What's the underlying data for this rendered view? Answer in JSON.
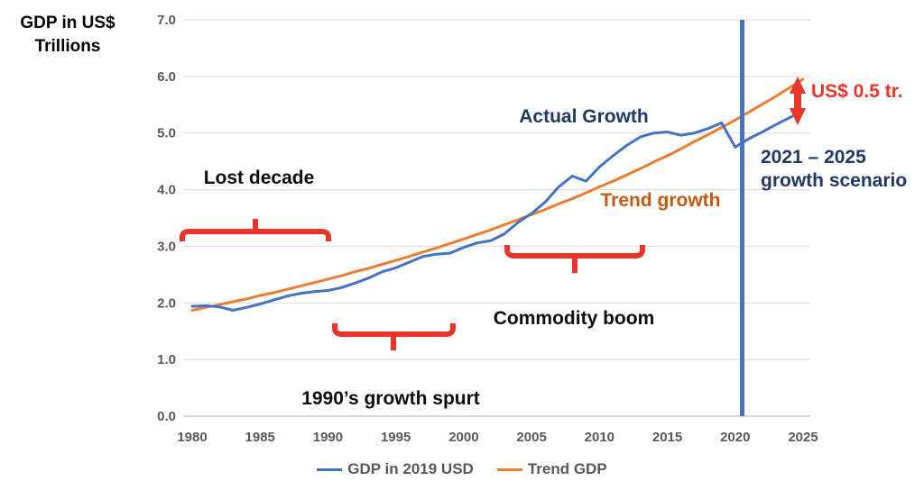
{
  "axis_title": {
    "line1": "GDP in US$",
    "line2": "Trillions"
  },
  "annotations": {
    "lost_decade": "Lost decade",
    "growth_spurt": "1990’s growth spurt",
    "commodity_boom": "Commodity boom",
    "actual_growth": "Actual Growth",
    "trend_growth": "Trend growth",
    "gap_label": "US$ 0.5 tr.",
    "scenario_line1": "2021 – 2025",
    "scenario_line2": "growth scenario"
  },
  "legend": {
    "items": [
      {
        "label": "GDP in 2019 USD",
        "color": "#4472c4"
      },
      {
        "label": "Trend GDP",
        "color": "#ed7d31"
      }
    ]
  },
  "colors": {
    "actual_line": "#4472c4",
    "trend_line": "#ed7d31",
    "annotation_red": "#e8352a",
    "annotation_navy": "#1f3864",
    "annotation_orange": "#c45911",
    "axis_gray": "#595959",
    "gridline": "#d9d9d9",
    "divider_blue": "#4472c4"
  },
  "chart_data": {
    "type": "line",
    "title": "GDP in US$ Trillions",
    "xlabel": "",
    "ylabel": "GDP in US$ Trillions",
    "ylim": [
      0.0,
      7.0
    ],
    "xlim": [
      1980,
      2025
    ],
    "grid": "horizontal",
    "legend_position": "bottom-center",
    "yticks": [
      0.0,
      1.0,
      2.0,
      3.0,
      4.0,
      5.0,
      6.0,
      7.0
    ],
    "xticks": [
      1980,
      1985,
      1990,
      1995,
      2000,
      2005,
      2010,
      2015,
      2020,
      2025
    ],
    "vertical_marker_year": 2020.5,
    "gap_arrow": {
      "year": 2024.5,
      "from_value": 5.85,
      "to_value": 5.32,
      "label": "US$ 0.5 tr."
    },
    "x": [
      1980,
      1981,
      1982,
      1983,
      1984,
      1985,
      1986,
      1987,
      1988,
      1989,
      1990,
      1991,
      1992,
      1993,
      1994,
      1995,
      1996,
      1997,
      1998,
      1999,
      2000,
      2001,
      2002,
      2003,
      2004,
      2005,
      2006,
      2007,
      2008,
      2009,
      2010,
      2011,
      2012,
      2013,
      2014,
      2015,
      2016,
      2017,
      2018,
      2019,
      2020,
      2021,
      2022,
      2023,
      2024,
      2025
    ],
    "series": [
      {
        "name": "GDP in 2019 USD",
        "color": "#4472c4",
        "values": [
          1.94,
          1.95,
          1.93,
          1.87,
          1.92,
          1.98,
          2.05,
          2.12,
          2.17,
          2.2,
          2.22,
          2.27,
          2.35,
          2.44,
          2.55,
          2.62,
          2.72,
          2.82,
          2.86,
          2.88,
          2.98,
          3.06,
          3.1,
          3.22,
          3.42,
          3.58,
          3.78,
          4.05,
          4.24,
          4.15,
          4.4,
          4.6,
          4.78,
          4.93,
          5.0,
          5.02,
          4.96,
          5.0,
          5.08,
          5.18,
          4.75,
          4.9,
          5.02,
          5.15,
          5.27,
          5.4
        ]
      },
      {
        "name": "Trend GDP",
        "color": "#ed7d31",
        "values": [
          1.87,
          1.92,
          1.97,
          2.02,
          2.07,
          2.13,
          2.18,
          2.24,
          2.3,
          2.36,
          2.42,
          2.48,
          2.55,
          2.61,
          2.68,
          2.75,
          2.82,
          2.9,
          2.97,
          3.05,
          3.13,
          3.21,
          3.29,
          3.38,
          3.47,
          3.56,
          3.65,
          3.75,
          3.84,
          3.94,
          4.05,
          4.15,
          4.26,
          4.37,
          4.49,
          4.6,
          4.72,
          4.85,
          4.97,
          5.1,
          5.23,
          5.37,
          5.51,
          5.65,
          5.8,
          5.95
        ]
      }
    ],
    "period_brackets": [
      {
        "label": "Lost decade",
        "start_year": 1980,
        "end_year": 1990,
        "direction": "up"
      },
      {
        "label": "1990’s growth spurt",
        "start_year": 1991,
        "end_year": 1999,
        "direction": "down"
      },
      {
        "label": "Commodity boom",
        "start_year": 2003,
        "end_year": 2013,
        "direction": "down"
      }
    ]
  }
}
